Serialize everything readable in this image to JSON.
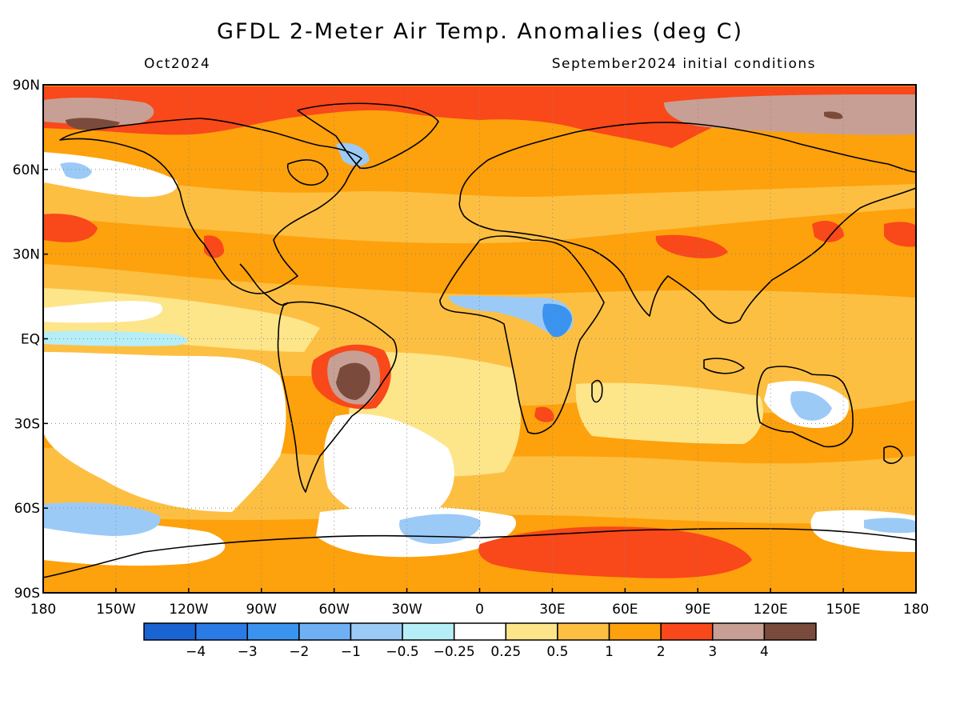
{
  "title": "GFDL 2-Meter Air Temp. Anomalies (deg C)",
  "valid_label": "Oct2024",
  "init_label": "September2024 initial conditions",
  "chart_data": {
    "type": "heatmap",
    "title": "GFDL 2-Meter Air Temp. Anomalies (deg C)",
    "subtitle_left": "Oct2024",
    "subtitle_right": "September2024 initial conditions",
    "x_ticks": [
      "180",
      "150W",
      "120W",
      "90W",
      "60W",
      "30W",
      "0",
      "30E",
      "60E",
      "90E",
      "120E",
      "150E",
      "180"
    ],
    "y_ticks": [
      "90N",
      "60N",
      "30N",
      "EQ",
      "30S",
      "60S",
      "90S"
    ],
    "xlim": [
      -180,
      180
    ],
    "ylim": [
      -90,
      90
    ],
    "grid": true,
    "colorbar": {
      "labels": [
        "−4",
        "−3",
        "−2",
        "−1",
        "−0.5",
        "−0.25",
        "0.25",
        "0.5",
        "1",
        "2",
        "3",
        "4"
      ],
      "colors": [
        "#1a63d2",
        "#2a7be6",
        "#3b93f0",
        "#6fb0f5",
        "#9ccaf7",
        "#b6eef7",
        "#ffffff",
        "#fde58a",
        "#fdbf42",
        "#fda10c",
        "#f9481a",
        "#c89f94",
        "#7a4b3c"
      ]
    },
    "regions": [
      {
        "name": "Arctic Ocean (Pacific side)",
        "level": ">4"
      },
      {
        "name": "Central South America / Brazil",
        "level": ">4"
      },
      {
        "name": "Siberian Arctic coast",
        "level": "3-4"
      },
      {
        "name": "Antarctica (East)",
        "level": "2-3"
      },
      {
        "name": "Tropical East Pacific",
        "level": "-0.25-0.25"
      },
      {
        "name": "Central Africa",
        "level": "-1 to -0.25"
      },
      {
        "name": "Southern Ocean (Pacific sector)",
        "level": "-1 to -0.5"
      }
    ]
  }
}
